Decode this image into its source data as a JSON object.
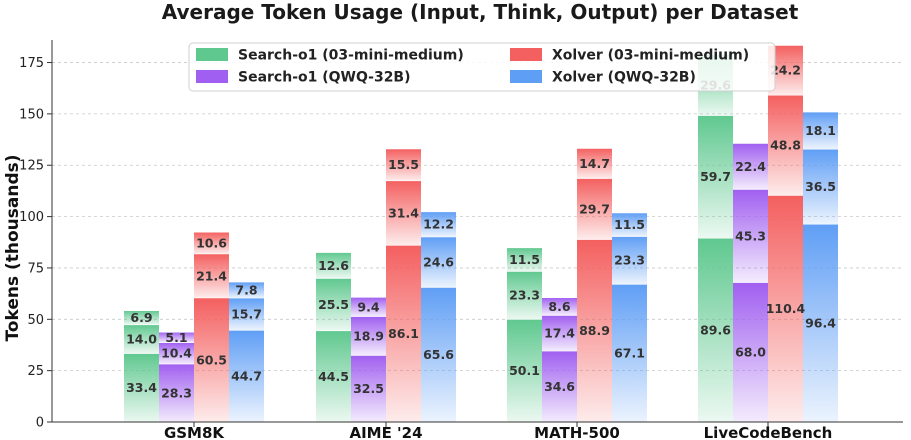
{
  "chart_data": {
    "type": "bar",
    "stacked": true,
    "title": "Average Token Usage (Input, Think, Output) per Dataset",
    "xlabel": "",
    "ylabel": "Tokens (thousands)",
    "ylim": [
      0,
      185
    ],
    "yticks": [
      0,
      25,
      50,
      75,
      100,
      125,
      150,
      175
    ],
    "grid": true,
    "legend_position": "top-center",
    "categories": [
      "GSM8K",
      "AIME '24",
      "MATH-500",
      "LiveCodeBench"
    ],
    "stack_segments": [
      "Input",
      "Think",
      "Output"
    ],
    "series": [
      {
        "name": "Search-o1 (03-mini-medium)",
        "color": "#5fc88f",
        "values": [
          [
            33.4,
            14.0,
            6.9
          ],
          [
            44.5,
            25.5,
            12.6
          ],
          [
            50.1,
            23.3,
            11.5
          ],
          [
            89.6,
            59.7,
            29.6
          ]
        ]
      },
      {
        "name": "Search-o1 (QWQ-32B)",
        "color": "#a05ff0",
        "values": [
          [
            28.3,
            10.4,
            5.1
          ],
          [
            32.5,
            18.9,
            9.4
          ],
          [
            34.6,
            17.4,
            8.6
          ],
          [
            68.0,
            45.3,
            22.4
          ]
        ]
      },
      {
        "name": "Xolver (03-mini-medium)",
        "color": "#f45f5f",
        "values": [
          [
            60.5,
            21.4,
            10.6
          ],
          [
            86.1,
            31.4,
            15.5
          ],
          [
            88.9,
            29.7,
            14.7
          ],
          [
            110.4,
            48.8,
            24.2
          ]
        ]
      },
      {
        "name": "Xolver (QWQ-32B)",
        "color": "#5f9ef5",
        "values": [
          [
            44.7,
            15.7,
            7.8
          ],
          [
            65.6,
            24.6,
            12.2
          ],
          [
            67.1,
            23.3,
            11.5
          ],
          [
            96.4,
            36.5,
            18.1
          ]
        ]
      }
    ]
  }
}
